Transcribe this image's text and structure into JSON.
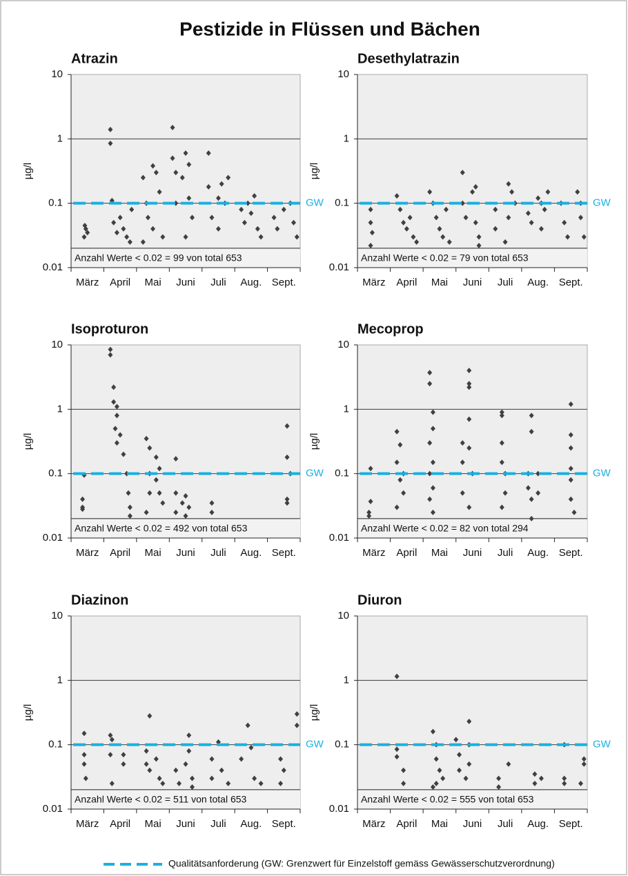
{
  "title": "Pestizide in Flüssen und Bächen",
  "legend": "Qualitätsanforderung (GW: Grenzwert für Einzelstoff gemäss Gewässerschutzverordnung)",
  "chart_data": [
    {
      "type": "scatter",
      "title": "Atrazin",
      "ylabel": "µg/l",
      "log_scale": true,
      "ylim": [
        0.01,
        10
      ],
      "yticks": [
        0.01,
        0.1,
        1,
        10
      ],
      "xlim": [
        0,
        7
      ],
      "xticks": [
        {
          "value": 0.5,
          "label": "März"
        },
        {
          "value": 1.5,
          "label": "April"
        },
        {
          "value": 2.5,
          "label": "Mai"
        },
        {
          "value": 3.5,
          "label": "Juni"
        },
        {
          "value": 4.5,
          "label": "Juli"
        },
        {
          "value": 5.5,
          "label": "Aug."
        },
        {
          "value": 6.5,
          "label": "Sept."
        }
      ],
      "gw": {
        "value": 0.1,
        "label": "GW",
        "color": "#1ab0e0"
      },
      "threshold": 0.02,
      "annotation": "Anzahl Werte < 0.02  = 99 von total 653",
      "color": "#404040",
      "x": [
        0.4,
        0.45,
        0.5,
        0.42,
        1.2,
        1.2,
        1.25,
        1.3,
        1.4,
        1.5,
        1.6,
        1.7,
        1.8,
        1.85,
        2.2,
        2.3,
        2.35,
        2.5,
        2.6,
        2.7,
        2.5,
        2.8,
        2.2,
        3.1,
        3.1,
        3.2,
        3.2,
        3.4,
        3.5,
        3.6,
        3.6,
        3.7,
        3.5,
        4.2,
        4.2,
        4.3,
        4.5,
        4.6,
        4.7,
        4.8,
        4.5,
        5.2,
        5.3,
        5.4,
        5.5,
        5.6,
        5.7,
        5.8,
        6.2,
        6.3,
        6.5,
        6.7,
        6.8,
        6.9
      ],
      "values": [
        0.03,
        0.04,
        0.035,
        0.045,
        1.4,
        0.85,
        0.11,
        0.05,
        0.035,
        0.06,
        0.04,
        0.03,
        0.025,
        0.08,
        0.25,
        0.1,
        0.06,
        0.38,
        0.3,
        0.15,
        0.04,
        0.03,
        0.025,
        1.5,
        0.5,
        0.3,
        0.1,
        0.25,
        0.6,
        0.4,
        0.12,
        0.06,
        0.03,
        0.6,
        0.18,
        0.06,
        0.12,
        0.2,
        0.1,
        0.25,
        0.04,
        0.08,
        0.05,
        0.1,
        0.07,
        0.13,
        0.04,
        0.03,
        0.06,
        0.04,
        0.08,
        0.1,
        0.05,
        0.03
      ]
    },
    {
      "type": "scatter",
      "title": "Desethylatrazin",
      "ylabel": "µg/l",
      "log_scale": true,
      "ylim": [
        0.01,
        10
      ],
      "yticks": [
        0.01,
        0.1,
        1,
        10
      ],
      "xlim": [
        0,
        7
      ],
      "xticks": [
        {
          "value": 0.5,
          "label": "März"
        },
        {
          "value": 1.5,
          "label": "April"
        },
        {
          "value": 2.5,
          "label": "Mai"
        },
        {
          "value": 3.5,
          "label": "Juni"
        },
        {
          "value": 4.5,
          "label": "Juli"
        },
        {
          "value": 5.5,
          "label": "Aug."
        },
        {
          "value": 6.5,
          "label": "Sept."
        }
      ],
      "gw": {
        "value": 0.1,
        "label": "GW",
        "color": "#1ab0e0"
      },
      "threshold": 0.02,
      "annotation": "Anzahl Werte < 0.02  = 79 von total 653",
      "color": "#404040",
      "x": [
        0.4,
        0.4,
        0.45,
        0.4,
        1.2,
        1.3,
        1.4,
        1.5,
        1.6,
        1.7,
        1.8,
        2.2,
        2.3,
        2.4,
        2.5,
        2.6,
        2.7,
        2.8,
        3.2,
        3.2,
        3.3,
        3.5,
        3.6,
        3.6,
        3.7,
        3.7,
        4.2,
        4.2,
        4.6,
        4.7,
        4.8,
        4.6,
        4.5,
        5.2,
        5.3,
        5.5,
        5.6,
        5.7,
        5.8,
        5.6,
        6.2,
        6.3,
        6.4,
        6.7,
        6.8,
        6.8,
        6.9
      ],
      "values": [
        0.08,
        0.05,
        0.035,
        0.022,
        0.13,
        0.08,
        0.05,
        0.04,
        0.06,
        0.03,
        0.025,
        0.15,
        0.1,
        0.06,
        0.04,
        0.03,
        0.08,
        0.025,
        0.3,
        0.1,
        0.06,
        0.15,
        0.18,
        0.05,
        0.03,
        0.022,
        0.08,
        0.04,
        0.2,
        0.15,
        0.1,
        0.06,
        0.025,
        0.07,
        0.05,
        0.12,
        0.1,
        0.08,
        0.15,
        0.04,
        0.1,
        0.05,
        0.03,
        0.15,
        0.1,
        0.06,
        0.03
      ]
    },
    {
      "type": "scatter",
      "title": "Isoproturon",
      "ylabel": "µg/l",
      "log_scale": true,
      "ylim": [
        0.01,
        10
      ],
      "yticks": [
        0.01,
        0.1,
        1,
        10
      ],
      "xlim": [
        0,
        7
      ],
      "xticks": [
        {
          "value": 0.5,
          "label": "März"
        },
        {
          "value": 1.5,
          "label": "April"
        },
        {
          "value": 2.5,
          "label": "Mai"
        },
        {
          "value": 3.5,
          "label": "Juni"
        },
        {
          "value": 4.5,
          "label": "Juli"
        },
        {
          "value": 5.5,
          "label": "Aug."
        },
        {
          "value": 6.5,
          "label": "Sept."
        }
      ],
      "gw": {
        "value": 0.1,
        "label": "GW",
        "color": "#1ab0e0"
      },
      "threshold": 0.02,
      "annotation": "Anzahl Werte < 0.02 = 492 von total 653",
      "color": "#404040",
      "x": [
        0.4,
        0.35,
        0.35,
        0.35,
        1.2,
        1.2,
        1.3,
        1.3,
        1.4,
        1.35,
        1.4,
        1.5,
        1.6,
        1.7,
        1.75,
        1.8,
        1.8,
        1.4,
        2.3,
        2.4,
        2.4,
        2.4,
        2.3,
        2.6,
        2.7,
        2.6,
        2.7,
        2.8,
        3.2,
        3.2,
        3.2,
        3.4,
        3.5,
        3.6,
        3.5,
        4.3,
        4.3,
        6.6,
        6.6,
        6.7,
        6.6,
        6.6
      ],
      "values": [
        0.095,
        0.04,
        0.03,
        0.028,
        8.5,
        7,
        2.2,
        1.3,
        0.8,
        0.5,
        0.3,
        0.4,
        0.2,
        0.1,
        0.05,
        0.03,
        0.022,
        1.1,
        0.35,
        0.25,
        0.1,
        0.05,
        0.025,
        0.18,
        0.12,
        0.08,
        0.05,
        0.035,
        0.17,
        0.05,
        0.025,
        0.035,
        0.045,
        0.03,
        0.022,
        0.035,
        0.025,
        0.55,
        0.18,
        0.1,
        0.04,
        0.035
      ]
    },
    {
      "type": "scatter",
      "title": "Mecoprop",
      "ylabel": "µg/l",
      "log_scale": true,
      "ylim": [
        0.01,
        10
      ],
      "yticks": [
        0.01,
        0.1,
        1,
        10
      ],
      "xlim": [
        0,
        7
      ],
      "xticks": [
        {
          "value": 0.5,
          "label": "März"
        },
        {
          "value": 1.5,
          "label": "April"
        },
        {
          "value": 2.5,
          "label": "Mai"
        },
        {
          "value": 3.5,
          "label": "Juni"
        },
        {
          "value": 4.5,
          "label": "Juli"
        },
        {
          "value": 5.5,
          "label": "Aug."
        },
        {
          "value": 6.5,
          "label": "Sept."
        }
      ],
      "gw": {
        "value": 0.1,
        "label": "GW",
        "color": "#1ab0e0"
      },
      "threshold": 0.02,
      "annotation": "Anzahl Werte < 0.02 = 82 von total 294",
      "color": "#404040",
      "x": [
        0.4,
        0.4,
        0.35,
        0.35,
        1.2,
        1.3,
        1.2,
        1.3,
        1.4,
        1.2,
        1.4,
        2.2,
        2.2,
        2.3,
        2.3,
        2.2,
        2.3,
        2.2,
        2.3,
        2.2,
        2.3,
        3.2,
        3.2,
        3.2,
        3.4,
        3.4,
        3.4,
        3.4,
        3.4,
        3.5,
        3.4,
        4.4,
        4.4,
        4.4,
        4.4,
        4.5,
        4.5,
        4.4,
        5.3,
        5.3,
        5.2,
        5.2,
        5.3,
        5.3,
        5.5,
        5.5,
        6.5,
        6.5,
        6.5,
        6.5,
        6.5,
        6.5,
        6.6
      ],
      "values": [
        0.12,
        0.037,
        0.025,
        0.022,
        0.45,
        0.28,
        0.15,
        0.08,
        0.05,
        0.03,
        0.1,
        3.7,
        2.5,
        0.9,
        0.5,
        0.3,
        0.15,
        0.1,
        0.06,
        0.04,
        0.025,
        0.3,
        0.15,
        0.05,
        4,
        2.5,
        2.2,
        0.7,
        0.25,
        0.1,
        0.03,
        0.9,
        0.8,
        0.3,
        0.15,
        0.1,
        0.05,
        0.03,
        0.8,
        0.45,
        0.1,
        0.06,
        0.04,
        0.02,
        0.1,
        0.05,
        1.2,
        0.4,
        0.25,
        0.12,
        0.08,
        0.04,
        0.025
      ]
    },
    {
      "type": "scatter",
      "title": "Diazinon",
      "ylabel": "µg/l",
      "log_scale": true,
      "ylim": [
        0.01,
        10
      ],
      "yticks": [
        0.01,
        0.1,
        1,
        10
      ],
      "xlim": [
        0,
        7
      ],
      "xticks": [
        {
          "value": 0.5,
          "label": "März"
        },
        {
          "value": 1.5,
          "label": "April"
        },
        {
          "value": 2.5,
          "label": "Mai"
        },
        {
          "value": 3.5,
          "label": "Juni"
        },
        {
          "value": 4.5,
          "label": "Juli"
        },
        {
          "value": 5.5,
          "label": "Aug."
        },
        {
          "value": 6.5,
          "label": "Sept."
        }
      ],
      "gw": {
        "value": 0.1,
        "label": "GW",
        "color": "#1ab0e0"
      },
      "threshold": 0.02,
      "annotation": "Anzahl Werte < 0.02 = 511 von total 653",
      "color": "#404040",
      "x": [
        0.4,
        0.4,
        0.4,
        0.45,
        1.2,
        1.25,
        1.2,
        1.25,
        1.6,
        1.6,
        2.4,
        2.3,
        2.3,
        2.4,
        2.6,
        2.7,
        2.8,
        3.2,
        3.3,
        3.5,
        3.6,
        3.6,
        3.7,
        3.7,
        4.3,
        4.3,
        4.5,
        4.6,
        4.8,
        5.2,
        5.4,
        5.5,
        5.6,
        5.8,
        6.4,
        6.5,
        6.4,
        6.9,
        6.9
      ],
      "values": [
        0.15,
        0.07,
        0.05,
        0.03,
        0.14,
        0.12,
        0.07,
        0.025,
        0.07,
        0.05,
        0.28,
        0.08,
        0.05,
        0.04,
        0.06,
        0.03,
        0.025,
        0.04,
        0.025,
        0.05,
        0.14,
        0.08,
        0.03,
        0.022,
        0.06,
        0.03,
        0.11,
        0.04,
        0.025,
        0.06,
        0.2,
        0.09,
        0.03,
        0.025,
        0.06,
        0.04,
        0.025,
        0.3,
        0.2
      ]
    },
    {
      "type": "scatter",
      "title": "Diuron",
      "ylabel": "µg/l",
      "log_scale": true,
      "ylim": [
        0.01,
        10
      ],
      "yticks": [
        0.01,
        0.1,
        1,
        10
      ],
      "xlim": [
        0,
        7
      ],
      "xticks": [
        {
          "value": 0.5,
          "label": "März"
        },
        {
          "value": 1.5,
          "label": "April"
        },
        {
          "value": 2.5,
          "label": "Mai"
        },
        {
          "value": 3.5,
          "label": "Juni"
        },
        {
          "value": 4.5,
          "label": "Juli"
        },
        {
          "value": 5.5,
          "label": "Aug."
        },
        {
          "value": 6.5,
          "label": "Sept."
        }
      ],
      "gw": {
        "value": 0.1,
        "label": "GW",
        "color": "#1ab0e0"
      },
      "threshold": 0.02,
      "annotation": "Anzahl Werte < 0.02 = 555 von total 653",
      "color": "#404040",
      "x": [
        1.2,
        1.2,
        1.2,
        1.4,
        1.4,
        2.3,
        2.4,
        2.4,
        2.5,
        2.4,
        2.3,
        2.6,
        3.0,
        3.1,
        3.1,
        3.4,
        3.4,
        3.4,
        3.3,
        4.3,
        4.3,
        4.6,
        5.4,
        5.6,
        5.4,
        6.3,
        6.3,
        6.3,
        6.9,
        6.9,
        6.8
      ],
      "values": [
        1.15,
        0.085,
        0.065,
        0.04,
        0.025,
        0.16,
        0.1,
        0.06,
        0.04,
        0.025,
        0.022,
        0.03,
        0.12,
        0.07,
        0.04,
        0.23,
        0.1,
        0.05,
        0.03,
        0.03,
        0.022,
        0.05,
        0.035,
        0.03,
        0.025,
        0.1,
        0.03,
        0.025,
        0.06,
        0.05,
        0.025
      ]
    }
  ]
}
